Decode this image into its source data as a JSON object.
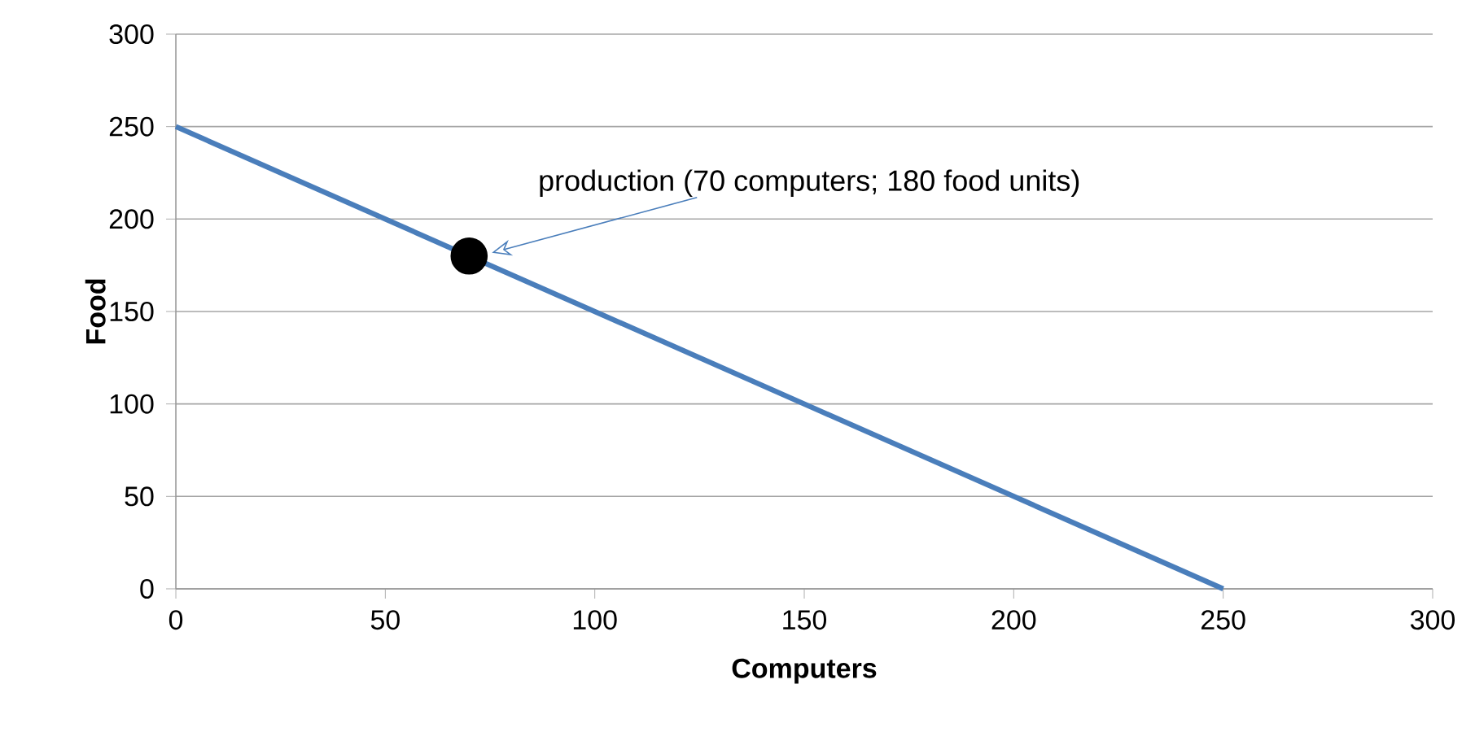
{
  "chart_data": {
    "type": "line",
    "xlabel": "Computers",
    "ylabel": "Food",
    "xlim": [
      0,
      300
    ],
    "ylim": [
      0,
      300
    ],
    "xticks": [
      0,
      50,
      100,
      150,
      200,
      250,
      300
    ],
    "yticks": [
      0,
      50,
      100,
      150,
      200,
      250,
      300
    ],
    "grid": "y",
    "series": [
      {
        "x": [
          0,
          250
        ],
        "values": [
          250,
          0
        ],
        "color": "#4a7ebb"
      },
      {
        "type": "scatter",
        "x": [
          70
        ],
        "values": [
          180
        ],
        "color": "#000000",
        "marker": "circle"
      }
    ],
    "annotations": [
      "production (70 computers; 180 food units)"
    ]
  }
}
